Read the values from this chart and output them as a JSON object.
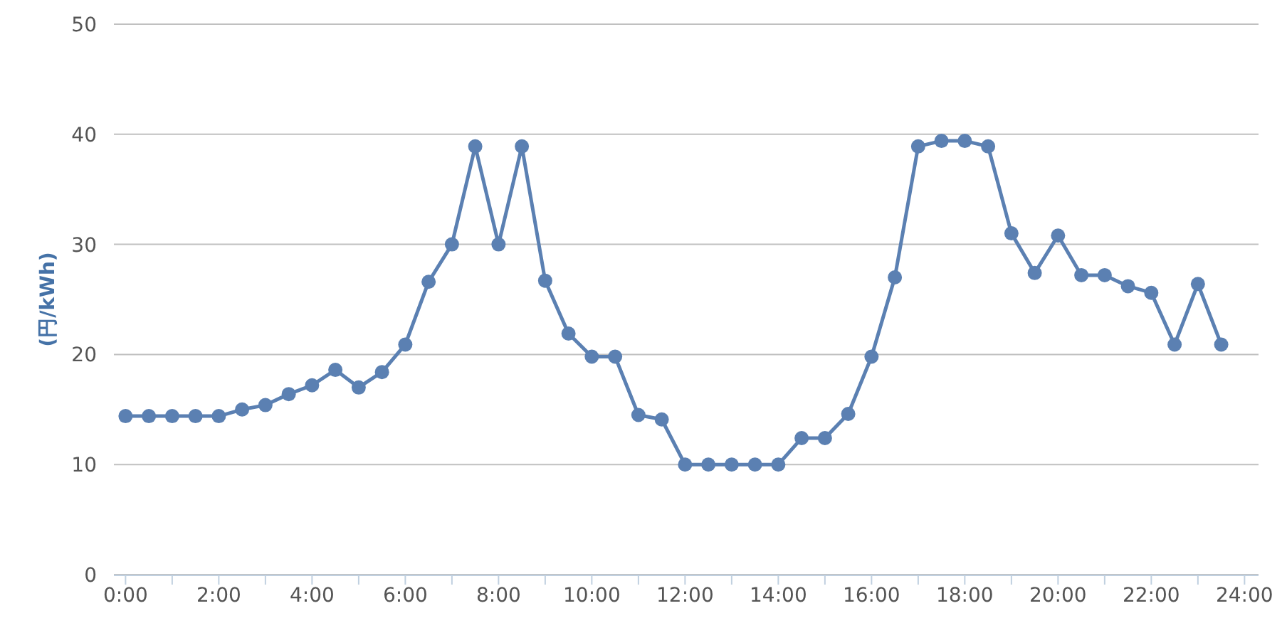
{
  "chart_data": {
    "type": "line",
    "ylabel": "(円/kWh)",
    "marker": "circle",
    "line_style": "solid",
    "grid": "y",
    "x": [
      0,
      0.5,
      1,
      1.5,
      2,
      2.5,
      3,
      3.5,
      4,
      4.5,
      5,
      5.5,
      6,
      6.5,
      7,
      7.5,
      8,
      8.5,
      9,
      9.5,
      10,
      10.5,
      11,
      11.5,
      12,
      12.5,
      13,
      13.5,
      14,
      14.5,
      15,
      15.5,
      16,
      16.5,
      17,
      17.5,
      18,
      18.5,
      19,
      19.5,
      20,
      20.5,
      21,
      21.5,
      22,
      22.5,
      23,
      23.5
    ],
    "series": [
      {
        "color": "#5b80b2",
        "values": [
          14.4,
          14.4,
          14.4,
          14.4,
          14.4,
          15.0,
          15.4,
          16.4,
          17.2,
          18.6,
          17.0,
          18.4,
          20.9,
          26.6,
          30.0,
          38.9,
          30.0,
          38.9,
          26.7,
          21.9,
          19.8,
          19.8,
          14.5,
          14.1,
          10.0,
          10.0,
          10.0,
          10.0,
          10.0,
          12.4,
          12.4,
          14.6,
          19.8,
          27.0,
          38.9,
          39.4,
          39.4,
          38.9,
          31.0,
          27.4,
          30.8,
          27.2,
          27.2,
          26.2,
          25.6,
          20.9,
          26.4,
          20.9
        ]
      }
    ],
    "xlim": [
      -0.25,
      24.3
    ],
    "xticks": [
      {
        "value": 0,
        "label": "0:00"
      },
      {
        "value": 1,
        "label": null
      },
      {
        "value": 2,
        "label": "2:00"
      },
      {
        "value": 3,
        "label": null
      },
      {
        "value": 4,
        "label": "4:00"
      },
      {
        "value": 5,
        "label": null
      },
      {
        "value": 6,
        "label": "6:00"
      },
      {
        "value": 7,
        "label": null
      },
      {
        "value": 8,
        "label": "8:00"
      },
      {
        "value": 9,
        "label": null
      },
      {
        "value": 10,
        "label": "10:00"
      },
      {
        "value": 11,
        "label": null
      },
      {
        "value": 12,
        "label": "12:00"
      },
      {
        "value": 13,
        "label": null
      },
      {
        "value": 14,
        "label": "14:00"
      },
      {
        "value": 15,
        "label": null
      },
      {
        "value": 16,
        "label": "16:00"
      },
      {
        "value": 17,
        "label": null
      },
      {
        "value": 18,
        "label": "18:00"
      },
      {
        "value": 19,
        "label": null
      },
      {
        "value": 20,
        "label": "20:00"
      },
      {
        "value": 21,
        "label": null
      },
      {
        "value": 22,
        "label": "22:00"
      },
      {
        "value": 23,
        "label": null
      },
      {
        "value": 24,
        "label": "24:00"
      }
    ],
    "ylim": [
      0,
      50
    ],
    "yticks": [
      0,
      10,
      20,
      30,
      40,
      50
    ]
  }
}
